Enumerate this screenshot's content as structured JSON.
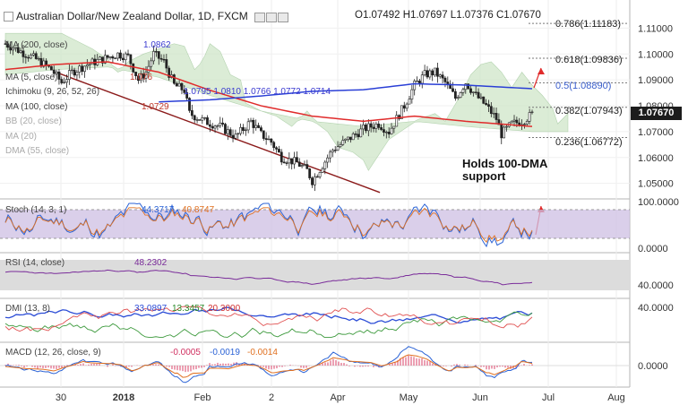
{
  "header": {
    "symbol_title": "Australian Dollar/New Zealand Dollar, 1D, FXCM",
    "ohlc": {
      "o": "O1.07492",
      "h": "H1.07697",
      "l": "L1.07376",
      "c": "C1.07670"
    }
  },
  "indicators_main": [
    {
      "label": "MA (200, close)",
      "value": "1.0862",
      "color": "#3a3ad0"
    },
    {
      "label": "MA (5, close)",
      "value": "1.076",
      "color": "#c0392b"
    },
    {
      "label": "Ichimoku (9, 26, 52, 26)",
      "value": "1.0795  1.0810  1.0766  1.0772  1.0714",
      "color": "#3a3ad0"
    },
    {
      "label": "MA (100, close)",
      "value": "1.0729",
      "color": "#c0392b"
    },
    {
      "label": "BB (20, close)",
      "value": "",
      "color": "#999999"
    },
    {
      "label": "MA (20)",
      "value": "",
      "color": "#999999"
    },
    {
      "label": "DMA (55, close)",
      "value": "",
      "color": "#999999"
    }
  ],
  "fib_levels": [
    {
      "label": "0.786(1.11183)",
      "value": 1.11183,
      "color": "#222222"
    },
    {
      "label": "0.618(1.09836)",
      "value": 1.09836,
      "color": "#222222"
    },
    {
      "label": "0.5(1.08890)",
      "value": 1.0889,
      "color": "#3a5ecc"
    },
    {
      "label": "0.382(1.07943)",
      "value": 1.07943,
      "color": "#222222"
    },
    {
      "label": "0.236(1.06772)",
      "value": 1.06772,
      "color": "#222222"
    }
  ],
  "annotation": {
    "line1": "Holds 100-DMA",
    "line2": "support"
  },
  "current_price": "1.07670",
  "panes": {
    "stoch": {
      "label": "Stoch (14, 3, 1)",
      "v1": "44.3717",
      "v2": "40.8747",
      "axis": [
        "100.0000",
        "0.0000"
      ]
    },
    "rsi": {
      "label": "RSI (14, close)",
      "v1": "48.2302",
      "axis": [
        "40.0000"
      ]
    },
    "dmi": {
      "label": "DMI (13, 8)",
      "v1": "33.0897",
      "v2": "13.3457",
      "v3": "20.3000",
      "axis": [
        "40.0000"
      ]
    },
    "macd": {
      "label": "MACD (12, 26, close, 9)",
      "v1": "-0.0005",
      "v2": "-0.0019",
      "v3": "-0.0014",
      "axis": [
        "0.0000"
      ]
    }
  },
  "colors": {
    "up": "#2a2a2a",
    "down": "#2a2a2a",
    "ma100": "#e02b2b",
    "ma200": "#2a3fd6",
    "cloud": "#cfe6c9",
    "cloud_red": "#ead0c8",
    "stoch_band": "#cdbfe3",
    "rsi_band": "#dcdcdc",
    "trendline": "#8b1a1a",
    "arrow": "#e02b2b"
  },
  "chart_data": {
    "type": "candlestick",
    "title": "Australian Dollar/New Zealand Dollar, 1D, FXCM",
    "x_ticks": [
      "30",
      "2018",
      "Feb",
      "2",
      "Apr",
      "May",
      "Jun",
      "Jul",
      "Aug"
    ],
    "y_ticks": [
      "1.11000",
      "1.10000",
      "1.09000",
      "1.08000",
      "1.07000",
      "1.06000",
      "1.05000"
    ],
    "ylim": [
      1.044,
      1.1195
    ],
    "close_path": [
      [
        0,
        1.104
      ],
      [
        6,
        1.101
      ],
      [
        12,
        1.098
      ],
      [
        18,
        1.094
      ],
      [
        22,
        1.089
      ],
      [
        26,
        1.093
      ],
      [
        32,
        1.096
      ],
      [
        38,
        1.098
      ],
      [
        44,
        1.1
      ],
      [
        48,
        1.099
      ],
      [
        52,
        1.09
      ],
      [
        55,
        1.093
      ],
      [
        58,
        1.1
      ],
      [
        62,
        1.097
      ],
      [
        66,
        1.088
      ],
      [
        70,
        1.086
      ],
      [
        72,
        1.077
      ],
      [
        78,
        1.074
      ],
      [
        84,
        1.072
      ],
      [
        90,
        1.068
      ],
      [
        96,
        1.074
      ],
      [
        100,
        1.069
      ],
      [
        104,
        1.066
      ],
      [
        108,
        1.06
      ],
      [
        114,
        1.058
      ],
      [
        118,
        1.055
      ],
      [
        120,
        1.051
      ],
      [
        124,
        1.057
      ],
      [
        128,
        1.063
      ],
      [
        134,
        1.067
      ],
      [
        140,
        1.071
      ],
      [
        146,
        1.073
      ],
      [
        150,
        1.07
      ],
      [
        156,
        1.08
      ],
      [
        160,
        1.088
      ],
      [
        164,
        1.092
      ],
      [
        168,
        1.093
      ],
      [
        172,
        1.089
      ],
      [
        176,
        1.083
      ],
      [
        180,
        1.089
      ],
      [
        184,
        1.084
      ],
      [
        188,
        1.08
      ],
      [
        192,
        1.075
      ],
      [
        194,
        1.069
      ],
      [
        198,
        1.073
      ],
      [
        202,
        1.074
      ],
      [
        206,
        1.0767
      ]
    ],
    "ma100": [
      [
        0,
        1.094
      ],
      [
        20,
        1.096
      ],
      [
        40,
        1.097
      ],
      [
        60,
        1.093
      ],
      [
        80,
        1.086
      ],
      [
        100,
        1.08
      ],
      [
        120,
        1.076
      ],
      [
        140,
        1.074
      ],
      [
        160,
        1.076
      ],
      [
        180,
        1.074
      ],
      [
        206,
        1.072
      ]
    ],
    "ma200": [
      [
        60,
        1.0815
      ],
      [
        80,
        1.0823
      ],
      [
        100,
        1.0838
      ],
      [
        120,
        1.0856
      ],
      [
        140,
        1.0862
      ],
      [
        160,
        1.0885
      ],
      [
        180,
        1.088
      ],
      [
        206,
        1.0866
      ]
    ]
  }
}
